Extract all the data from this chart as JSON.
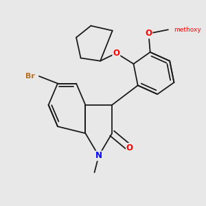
{
  "background_color": "#e8e8e8",
  "bond_color": "#1a1a1a",
  "atom_colors": {
    "O": "#ff0000",
    "N": "#0000ff",
    "Br": "#b87020",
    "C": "#1a1a1a"
  },
  "figsize": [
    3.0,
    3.0
  ],
  "dpi": 100,
  "lw": 1.3
}
